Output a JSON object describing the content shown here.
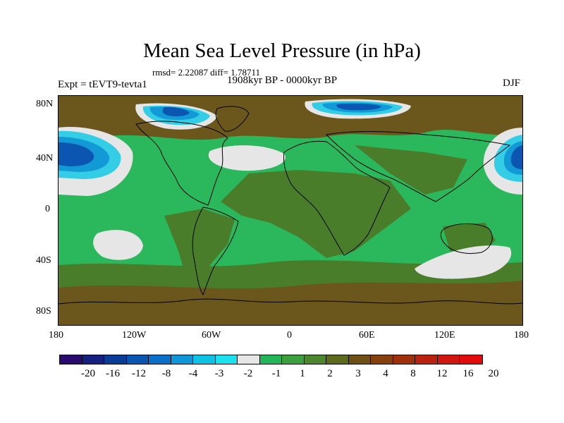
{
  "title": "Mean Sea Level Pressure (in hPa)",
  "stats": "rmsd= 2.22087 diff= 1.78711",
  "period": "1908kyr BP - 0000kyr BP",
  "experiment": "Expt = tEVT9-tevta1",
  "season": "DJF",
  "axes": {
    "y_labels": [
      "80N",
      "40N",
      "0",
      "40S",
      "80S"
    ],
    "x_labels": [
      "180",
      "120W",
      "60W",
      "0",
      "60E",
      "120E",
      "180"
    ]
  },
  "colorbar": {
    "colors": [
      "#2a0a6e",
      "#16207f",
      "#0a3d96",
      "#0b56b0",
      "#0a6fc8",
      "#0f96d6",
      "#0ec2e3",
      "#1be0ee",
      "#e6e6e6",
      "#22b65a",
      "#3da03e",
      "#4d862c",
      "#5e6a1c",
      "#6e5014",
      "#86400e",
      "#9e300c",
      "#b8220e",
      "#d1150f",
      "#e40b0c"
    ],
    "labels": [
      "-20",
      "-16",
      "-12",
      "-8",
      "-4",
      "-3",
      "-2",
      "-1",
      "1",
      "2",
      "3",
      "4",
      "8",
      "12",
      "16",
      "20"
    ]
  },
  "field_colors": {
    "ocean_positive": "#2bb75c",
    "land_mid": "#4a7d2a",
    "warm": "#6b561c",
    "near_zero": "#e6e6e6",
    "low_strong": "#0a56b0",
    "low_mid": "#129ad6",
    "low_light": "#34cde6",
    "coast": "#000000"
  }
}
